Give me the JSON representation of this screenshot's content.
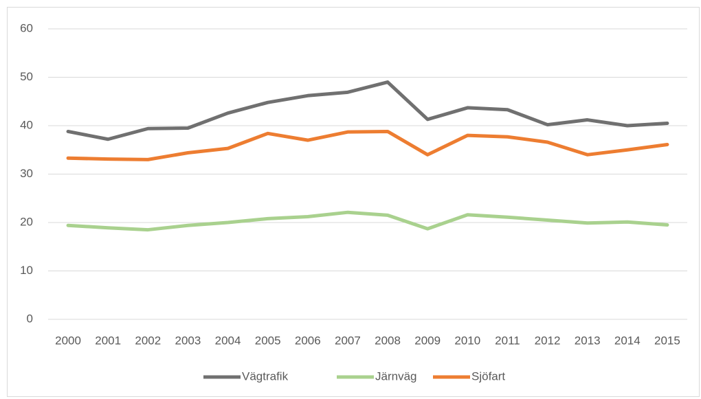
{
  "chart_data": {
    "type": "line",
    "categories": [
      "2000",
      "2001",
      "2002",
      "2003",
      "2004",
      "2005",
      "2006",
      "2007",
      "2008",
      "2009",
      "2010",
      "2011",
      "2012",
      "2013",
      "2014",
      "2015"
    ],
    "series": [
      {
        "name": "Vägtrafik",
        "color": "#707070",
        "values": [
          38.8,
          37.2,
          39.4,
          39.5,
          42.6,
          44.8,
          46.2,
          46.9,
          49.0,
          41.3,
          43.7,
          43.3,
          40.2,
          41.2,
          40.0,
          40.5
        ]
      },
      {
        "name": "Järnväg",
        "color": "#a9d18e",
        "values": [
          19.4,
          18.9,
          18.5,
          19.4,
          20.0,
          20.8,
          21.2,
          22.1,
          21.5,
          18.7,
          21.6,
          21.1,
          20.5,
          19.9,
          20.1,
          19.5
        ]
      },
      {
        "name": "Sjöfart",
        "color": "#ed7d31",
        "values": [
          33.3,
          33.1,
          33.0,
          34.4,
          35.3,
          38.4,
          37.0,
          38.7,
          38.8,
          34.0,
          38.0,
          37.7,
          36.6,
          34.0,
          35.0,
          36.1
        ]
      }
    ],
    "ylim": [
      0,
      60
    ],
    "yticks": [
      0,
      10,
      20,
      30,
      40,
      50,
      60
    ],
    "grid": true,
    "legend": "bottom"
  }
}
